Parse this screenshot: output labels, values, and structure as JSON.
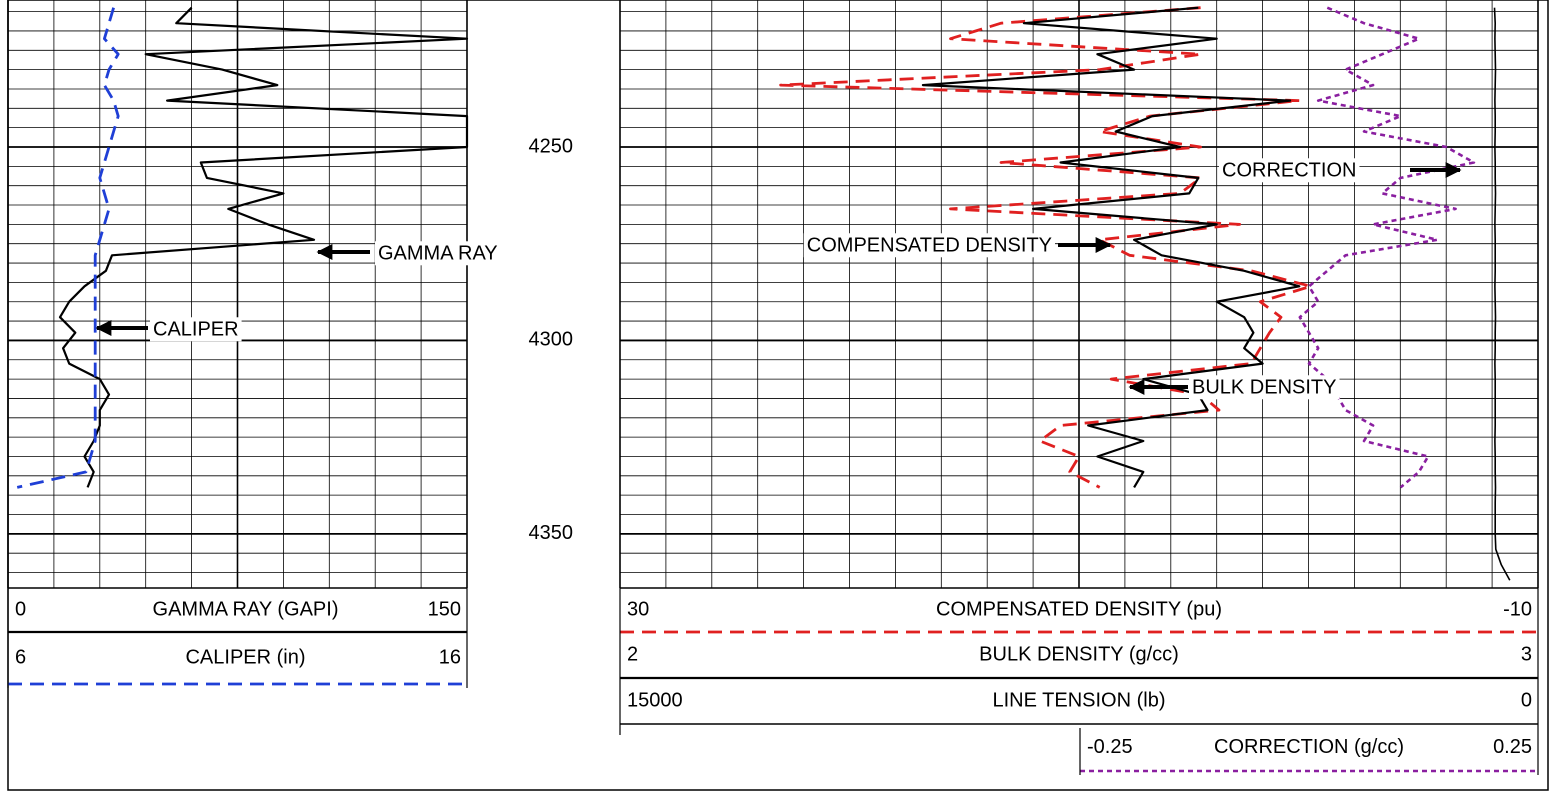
{
  "chart_data": {
    "type": "well_log",
    "x": [
      4214,
      4218,
      4222,
      4226,
      4230,
      4234,
      4238,
      4242,
      4246,
      4250,
      4254,
      4258,
      4262,
      4266,
      4270,
      4274,
      4278,
      4282,
      4286,
      4290,
      4294,
      4298,
      4302,
      4306,
      4310,
      4314,
      4318,
      4322,
      4326,
      4330,
      4334,
      4338,
      4342,
      4346,
      4350,
      4354,
      4358,
      4362
    ],
    "ylim": [
      4212,
      4364
    ],
    "yticks": [
      4250,
      4300,
      4350
    ],
    "yminor": [
      4215,
      4220,
      4225,
      4230,
      4235,
      4240,
      4245,
      4255,
      4260,
      4265,
      4270,
      4275,
      4280,
      4285,
      4290,
      4295,
      4305,
      4310,
      4315,
      4320,
      4325,
      4330,
      4335,
      4340,
      4345,
      4355,
      4360
    ],
    "grid": true,
    "tracks": [
      {
        "series": [
          {
            "name": "GAMMA RAY (GAPI)",
            "color": "#000000",
            "line_style": "solid",
            "xlim": [
              0,
              150
            ],
            "values": [
              60,
              55,
              150,
              45,
              70,
              88,
              52,
              150,
              150,
              150,
              63,
              65,
              90,
              72,
              85,
              100,
              34,
              32,
              25,
              20,
              17,
              22,
              18,
              20,
              30,
              33,
              30,
              30,
              28,
              25,
              28,
              26,
              null,
              null,
              null,
              null,
              null,
              null
            ]
          },
          {
            "name": "CALIPER (in)",
            "color": "#1f3fd6",
            "line_style": "dashed",
            "xlim": [
              6,
              16
            ],
            "values": [
              8.3,
              8.2,
              8.1,
              8.4,
              8.2,
              8.1,
              8.3,
              8.4,
              8.3,
              8.2,
              8.1,
              8.0,
              8.1,
              8.2,
              8.1,
              8.0,
              7.9,
              7.9,
              7.9,
              7.9,
              7.9,
              7.9,
              7.9,
              7.9,
              7.9,
              7.9,
              7.9,
              7.9,
              7.9,
              7.8,
              7.7,
              6.2,
              null,
              null,
              null,
              null,
              null,
              null
            ]
          }
        ]
      },
      {
        "series": [
          {
            "name": "COMPENSATED DENSITY (pu)",
            "color": "#e02020",
            "line_style": "dashed",
            "xlim": [
              30,
              -10
            ],
            "values": [
              4.7,
              13.4,
              15.6,
              4.7,
              9.1,
              23,
              0.4,
              6.9,
              9.1,
              4.7,
              13.4,
              4.7,
              5.6,
              15.6,
              3,
              9.1,
              7.8,
              2.5,
              -0.1,
              2.1,
              1.2,
              1.7,
              2.1,
              2.5,
              8.6,
              4.7,
              3.9,
              10.8,
              11.7,
              10,
              10.4,
              9.1,
              null,
              null,
              null,
              null,
              null,
              null
            ]
          },
          {
            "name": "BULK DENSITY (g/cc)",
            "color": "#000000",
            "line_style": "solid",
            "xlim": [
              2,
              3
            ],
            "values": [
              2.63,
              2.44,
              2.65,
              2.52,
              2.56,
              2.33,
              2.73,
              2.58,
              2.54,
              2.61,
              2.48,
              2.63,
              2.62,
              2.45,
              2.65,
              2.56,
              2.59,
              2.68,
              2.74,
              2.65,
              2.68,
              2.69,
              2.68,
              2.7,
              2.57,
              2.63,
              2.64,
              2.51,
              2.57,
              2.52,
              2.57,
              2.56,
              null,
              null,
              null,
              null,
              null,
              null
            ]
          },
          {
            "name": "LINE TENSION (lb)",
            "color": "#000000",
            "line_style": "thin",
            "xlim": [
              15000,
              0
            ],
            "values": [
              710,
              700,
              705,
              700,
              695,
              700,
              705,
              700,
              700,
              705,
              700,
              700,
              695,
              700,
              705,
              700,
              700,
              700,
              705,
              700,
              695,
              700,
              700,
              705,
              700,
              700,
              700,
              700,
              705,
              700,
              700,
              695,
              700,
              700,
              700,
              690,
              600,
              460
            ]
          },
          {
            "name": "CORRECTION (g/cc)",
            "color": "#8a1fa0",
            "line_style": "dotted",
            "xlim": [
              -0.25,
              0.25
            ],
            "values": [
              0.02,
              0.06,
              0.12,
              0.08,
              0.04,
              0.07,
              0.01,
              0.1,
              0.06,
              0.15,
              0.18,
              0.1,
              0.08,
              0.16,
              0.07,
              0.14,
              0.04,
              0.02,
              0.0,
              0.01,
              -0.01,
              0.0,
              0.01,
              0.0,
              0.02,
              0.03,
              0.04,
              0.07,
              0.06,
              0.13,
              0.12,
              0.1,
              null,
              null,
              null,
              null,
              null,
              null
            ]
          }
        ]
      }
    ],
    "annotations": [
      "GAMMA RAY",
      "CALIPER",
      "COMPENSATED DENSITY",
      "BULK DENSITY",
      "CORRECTION"
    ]
  }
}
